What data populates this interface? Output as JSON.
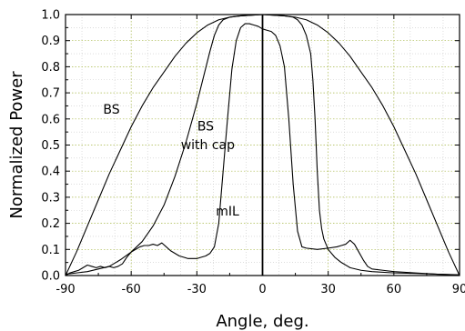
{
  "chart_data": {
    "type": "line",
    "xlabel": "Angle, deg.",
    "ylabel": "Normalized Power",
    "xlim": [
      -90,
      90
    ],
    "ylim": [
      0,
      1
    ],
    "xticks": [
      -90,
      -60,
      -30,
      0,
      30,
      60,
      90
    ],
    "xtick_labels": [
      "-90",
      "-60",
      "-30",
      "0",
      "30",
      "60",
      "90"
    ],
    "yticks": [
      0,
      0.1,
      0.2,
      0.3,
      0.4,
      0.5,
      0.6,
      0.7,
      0.8,
      0.9,
      1.0
    ],
    "ytick_labels": [
      "0.0",
      "0.1",
      "0.2",
      "0.3",
      "0.4",
      "0.5",
      "0.6",
      "0.7",
      "0.8",
      "0.9",
      "1.0"
    ],
    "grid": true,
    "vline_x": 0,
    "line_color": "#000000",
    "grid_color": "#c8c8c8",
    "major_grid_color": "#a8b84a",
    "series": [
      {
        "id": "bs",
        "points": [
          [
            -90,
            0.0
          ],
          [
            -85,
            0.09
          ],
          [
            -80,
            0.19
          ],
          [
            -75,
            0.29
          ],
          [
            -70,
            0.39
          ],
          [
            -65,
            0.48
          ],
          [
            -60,
            0.57
          ],
          [
            -55,
            0.65
          ],
          [
            -50,
            0.72
          ],
          [
            -45,
            0.78
          ],
          [
            -40,
            0.84
          ],
          [
            -35,
            0.89
          ],
          [
            -30,
            0.93
          ],
          [
            -25,
            0.96
          ],
          [
            -20,
            0.98
          ],
          [
            -15,
            0.99
          ],
          [
            -10,
            0.995
          ],
          [
            0,
            1.0
          ],
          [
            10,
            0.995
          ],
          [
            15,
            0.99
          ],
          [
            20,
            0.98
          ],
          [
            25,
            0.96
          ],
          [
            30,
            0.93
          ],
          [
            35,
            0.89
          ],
          [
            40,
            0.84
          ],
          [
            45,
            0.78
          ],
          [
            50,
            0.72
          ],
          [
            55,
            0.65
          ],
          [
            60,
            0.57
          ],
          [
            65,
            0.48
          ],
          [
            70,
            0.39
          ],
          [
            75,
            0.29
          ],
          [
            80,
            0.19
          ],
          [
            85,
            0.09
          ],
          [
            90,
            0.0
          ]
        ]
      },
      {
        "id": "bs-cap",
        "points": [
          [
            -90,
            0.005
          ],
          [
            -85,
            0.01
          ],
          [
            -80,
            0.015
          ],
          [
            -75,
            0.025
          ],
          [
            -70,
            0.035
          ],
          [
            -65,
            0.06
          ],
          [
            -60,
            0.09
          ],
          [
            -55,
            0.13
          ],
          [
            -50,
            0.19
          ],
          [
            -45,
            0.27
          ],
          [
            -40,
            0.38
          ],
          [
            -35,
            0.51
          ],
          [
            -30,
            0.66
          ],
          [
            -27,
            0.76
          ],
          [
            -24,
            0.86
          ],
          [
            -22,
            0.92
          ],
          [
            -20,
            0.96
          ],
          [
            -18,
            0.98
          ],
          [
            -15,
            0.99
          ],
          [
            -10,
            0.995
          ],
          [
            0,
            1.0
          ],
          [
            10,
            0.995
          ],
          [
            14,
            0.99
          ],
          [
            16,
            0.98
          ],
          [
            18,
            0.96
          ],
          [
            20,
            0.92
          ],
          [
            22,
            0.85
          ],
          [
            23,
            0.75
          ],
          [
            24,
            0.6
          ],
          [
            25,
            0.4
          ],
          [
            26,
            0.25
          ],
          [
            27,
            0.18
          ],
          [
            28,
            0.14
          ],
          [
            30,
            0.1
          ],
          [
            33,
            0.07
          ],
          [
            36,
            0.05
          ],
          [
            40,
            0.03
          ],
          [
            45,
            0.02
          ],
          [
            50,
            0.015
          ],
          [
            60,
            0.01
          ],
          [
            70,
            0.008
          ],
          [
            80,
            0.005
          ],
          [
            90,
            0.003
          ]
        ]
      },
      {
        "id": "mil",
        "points": [
          [
            -90,
            0.0
          ],
          [
            -88,
            0.01
          ],
          [
            -86,
            0.015
          ],
          [
            -84,
            0.02
          ],
          [
            -82,
            0.03
          ],
          [
            -80,
            0.04
          ],
          [
            -78,
            0.035
          ],
          [
            -76,
            0.03
          ],
          [
            -74,
            0.035
          ],
          [
            -72,
            0.03
          ],
          [
            -70,
            0.035
          ],
          [
            -68,
            0.03
          ],
          [
            -66,
            0.035
          ],
          [
            -64,
            0.045
          ],
          [
            -62,
            0.07
          ],
          [
            -60,
            0.09
          ],
          [
            -58,
            0.1
          ],
          [
            -56,
            0.11
          ],
          [
            -54,
            0.115
          ],
          [
            -52,
            0.115
          ],
          [
            -50,
            0.12
          ],
          [
            -48,
            0.115
          ],
          [
            -46,
            0.125
          ],
          [
            -44,
            0.11
          ],
          [
            -42,
            0.095
          ],
          [
            -40,
            0.085
          ],
          [
            -38,
            0.075
          ],
          [
            -36,
            0.07
          ],
          [
            -34,
            0.065
          ],
          [
            -32,
            0.065
          ],
          [
            -30,
            0.065
          ],
          [
            -28,
            0.07
          ],
          [
            -26,
            0.075
          ],
          [
            -24,
            0.085
          ],
          [
            -22,
            0.11
          ],
          [
            -20,
            0.2
          ],
          [
            -18,
            0.4
          ],
          [
            -16,
            0.6
          ],
          [
            -14,
            0.79
          ],
          [
            -12,
            0.9
          ],
          [
            -10,
            0.95
          ],
          [
            -8,
            0.965
          ],
          [
            -6,
            0.965
          ],
          [
            -4,
            0.96
          ],
          [
            -2,
            0.955
          ],
          [
            0,
            0.945
          ],
          [
            2,
            0.94
          ],
          [
            4,
            0.935
          ],
          [
            6,
            0.92
          ],
          [
            8,
            0.88
          ],
          [
            10,
            0.8
          ],
          [
            12,
            0.6
          ],
          [
            14,
            0.35
          ],
          [
            16,
            0.17
          ],
          [
            18,
            0.11
          ],
          [
            20,
            0.105
          ],
          [
            25,
            0.1
          ],
          [
            30,
            0.105
          ],
          [
            34,
            0.11
          ],
          [
            36,
            0.115
          ],
          [
            38,
            0.12
          ],
          [
            40,
            0.135
          ],
          [
            42,
            0.12
          ],
          [
            44,
            0.09
          ],
          [
            46,
            0.06
          ],
          [
            48,
            0.035
          ],
          [
            50,
            0.025
          ],
          [
            55,
            0.02
          ],
          [
            60,
            0.015
          ],
          [
            70,
            0.01
          ],
          [
            80,
            0.005
          ],
          [
            90,
            0.002
          ]
        ]
      }
    ],
    "annotations": [
      {
        "text": "BS",
        "x": -69,
        "y": 0.62
      },
      {
        "text": "BS",
        "x": -26,
        "y": 0.555
      },
      {
        "text": "with cap",
        "x": -25,
        "y": 0.485
      },
      {
        "text": "mIL",
        "x": -16,
        "y": 0.23
      }
    ]
  }
}
